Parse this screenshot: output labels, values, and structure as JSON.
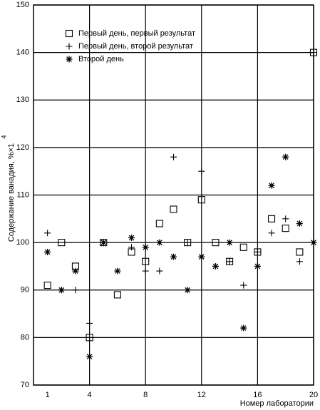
{
  "chart_data": {
    "type": "scatter",
    "ylabel": "Содержание ванадия, %×1",
    "ylabel_superscript": "4",
    "xlabel": "Номер лаборатории",
    "x": [
      1,
      2,
      3,
      4,
      5,
      6,
      7,
      8,
      9,
      10,
      11,
      12,
      13,
      14,
      15,
      16,
      17,
      18,
      19,
      20
    ],
    "series": [
      {
        "name": "Первый день, первый результат",
        "marker": "square",
        "color": "#000000",
        "values": [
          91,
          100,
          95,
          80,
          100,
          89,
          98,
          96,
          104,
          107,
          100,
          109,
          100,
          96,
          99,
          98,
          105,
          103,
          98,
          140
        ]
      },
      {
        "name": "Первый день, второй результат",
        "marker": "plus",
        "color": "#000000",
        "values": [
          102,
          90,
          90,
          83,
          100,
          null,
          99,
          94,
          94,
          118,
          100,
          115,
          null,
          96,
          91,
          98,
          102,
          105,
          96,
          140
        ]
      },
      {
        "name": "Второй день",
        "marker": "star",
        "color": "#000000",
        "values": [
          98,
          90,
          94,
          76,
          100,
          94,
          101,
          99,
          100,
          97,
          90,
          97,
          95,
          100,
          82,
          95,
          112,
          118,
          104,
          100
        ]
      }
    ],
    "xlim": [
      0,
      20
    ],
    "ylim": [
      70,
      150
    ],
    "xticks": [
      1,
      4,
      8,
      12,
      16,
      20
    ],
    "xgrid": [
      4,
      8,
      12,
      16,
      20
    ],
    "yticks": [
      70,
      80,
      90,
      100,
      110,
      120,
      130,
      140,
      150
    ],
    "grid": true,
    "legend": "upper left"
  }
}
